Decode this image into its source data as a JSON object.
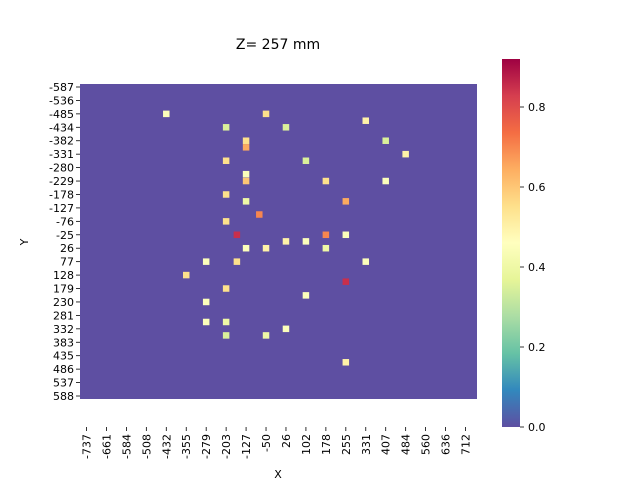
{
  "chart_data": {
    "type": "heatmap",
    "title": "Z= 257 mm",
    "xlabel": "X",
    "ylabel": "Y",
    "x_tick_labels": [
      "-737",
      "-661",
      "-584",
      "-508",
      "-432",
      "-355",
      "-279",
      "-203",
      "-127",
      "-50",
      "26",
      "102",
      "178",
      "255",
      "331",
      "407",
      "484",
      "560",
      "636",
      "712"
    ],
    "y_tick_labels": [
      "-587",
      "-536",
      "-485",
      "-434",
      "-382",
      "-331",
      "-280",
      "-229",
      "-178",
      "-127",
      "-76",
      "-25",
      "26",
      "77",
      "128",
      "179",
      "230",
      "281",
      "332",
      "383",
      "435",
      "486",
      "537",
      "588"
    ],
    "colorbar": {
      "range": [
        0.0,
        0.92
      ],
      "tick_labels": [
        "0.0",
        "0.2",
        "0.4",
        "0.6",
        "0.8"
      ],
      "tick_values": [
        0.0,
        0.2,
        0.4,
        0.6,
        0.8
      ],
      "colormap": "Spectral_r"
    },
    "background_value": 0.0,
    "cells": [
      {
        "x": "-432",
        "y": "-485",
        "v": 0.45
      },
      {
        "x": "-50",
        "y": "-485",
        "v": 0.55
      },
      {
        "x": "331",
        "y": "-459",
        "v": 0.5
      },
      {
        "x": "-203",
        "y": "-434",
        "v": 0.35
      },
      {
        "x": "26",
        "y": "-434",
        "v": 0.35
      },
      {
        "x": "-127",
        "y": "-382",
        "v": 0.55
      },
      {
        "x": "-127",
        "y": "-357",
        "v": 0.65
      },
      {
        "x": "407",
        "y": "-382",
        "v": 0.35
      },
      {
        "x": "484",
        "y": "-331",
        "v": 0.5
      },
      {
        "x": "-203",
        "y": "-306",
        "v": 0.55
      },
      {
        "x": "102",
        "y": "-306",
        "v": 0.35
      },
      {
        "x": "-127",
        "y": "-255",
        "v": 0.45
      },
      {
        "x": "-127",
        "y": "-229",
        "v": 0.6
      },
      {
        "x": "178",
        "y": "-229",
        "v": 0.55
      },
      {
        "x": "407",
        "y": "-229",
        "v": 0.45
      },
      {
        "x": "-203",
        "y": "-178",
        "v": 0.55
      },
      {
        "x": "-127",
        "y": "-152",
        "v": 0.4
      },
      {
        "x": "255",
        "y": "-152",
        "v": 0.65
      },
      {
        "x": "-76",
        "y": "-102",
        "v": 0.7
      },
      {
        "x": "-203",
        "y": "-76",
        "v": 0.55
      },
      {
        "x": "-162",
        "y": "-25",
        "v": 0.85
      },
      {
        "x": "178",
        "y": "-25",
        "v": 0.7
      },
      {
        "x": "255",
        "y": "-25",
        "v": 0.45
      },
      {
        "x": "26",
        "y": "0",
        "v": 0.5
      },
      {
        "x": "102",
        "y": "0",
        "v": 0.45
      },
      {
        "x": "-127",
        "y": "26",
        "v": 0.45
      },
      {
        "x": "-50",
        "y": "26",
        "v": 0.5
      },
      {
        "x": "178",
        "y": "26",
        "v": 0.4
      },
      {
        "x": "-162",
        "y": "77",
        "v": 0.55
      },
      {
        "x": "-279",
        "y": "77",
        "v": 0.45
      },
      {
        "x": "331",
        "y": "77",
        "v": 0.45
      },
      {
        "x": "-355",
        "y": "128",
        "v": 0.55
      },
      {
        "x": "255",
        "y": "153",
        "v": 0.85
      },
      {
        "x": "-203",
        "y": "179",
        "v": 0.55
      },
      {
        "x": "102",
        "y": "205",
        "v": 0.45
      },
      {
        "x": "-279",
        "y": "230",
        "v": 0.45
      },
      {
        "x": "-279",
        "y": "306",
        "v": 0.45
      },
      {
        "x": "-203",
        "y": "306",
        "v": 0.4
      },
      {
        "x": "26",
        "y": "332",
        "v": 0.45
      },
      {
        "x": "-50",
        "y": "357",
        "v": 0.4
      },
      {
        "x": "-203",
        "y": "357",
        "v": 0.35
      },
      {
        "x": "255",
        "y": "460",
        "v": 0.5
      }
    ]
  }
}
